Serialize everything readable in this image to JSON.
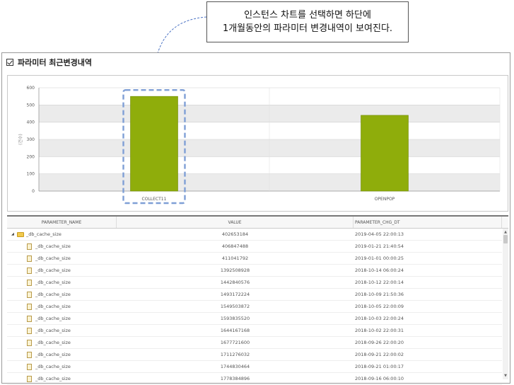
{
  "callout": {
    "line1": "인스턴스 차트를 선택하면 하단에",
    "line2": "1개월동안의 파라미터 변경내역이 보여진다."
  },
  "panel": {
    "title": "파라미터 최근변경내역"
  },
  "colors": {
    "bar": "#8fad0b",
    "highlight_dash": "#7f9fd6",
    "arrow": "#4a72c4"
  },
  "chart_data": {
    "type": "bar",
    "categories": [
      "COLLECT11",
      "OPENPOP"
    ],
    "values": [
      550,
      440
    ],
    "ylabel": "(건수)",
    "ylim": [
      0,
      600
    ],
    "yticks": [
      0,
      100,
      200,
      300,
      400,
      500,
      600
    ],
    "grid": true,
    "highlighted_category": "COLLECT11"
  },
  "grid": {
    "columns": [
      "PARAMETER_NAME",
      "VALUE",
      "PARAMETER_CHG_DT"
    ],
    "rows": [
      {
        "name": "_db_cache_size",
        "value": "402653184",
        "dt": "2019-04-05 22:00:13",
        "parent": true
      },
      {
        "name": "_db_cache_size",
        "value": "406847488",
        "dt": "2019-01-21 21:40:54"
      },
      {
        "name": "_db_cache_size",
        "value": "411041792",
        "dt": "2019-01-01 00:00:25"
      },
      {
        "name": "_db_cache_size",
        "value": "1392508928",
        "dt": "2018-10-14 06:00:24"
      },
      {
        "name": "_db_cache_size",
        "value": "1442840576",
        "dt": "2018-10-12 22:00:14"
      },
      {
        "name": "_db_cache_size",
        "value": "1493172224",
        "dt": "2018-10-09 21:50:36"
      },
      {
        "name": "_db_cache_size",
        "value": "1549503872",
        "dt": "2018-10-05 22:00:09"
      },
      {
        "name": "_db_cache_size",
        "value": "1593835520",
        "dt": "2018-10-03 22:00:24"
      },
      {
        "name": "_db_cache_size",
        "value": "1644167168",
        "dt": "2018-10-02 22:00:31"
      },
      {
        "name": "_db_cache_size",
        "value": "1677721600",
        "dt": "2018-09-26 22:00:20"
      },
      {
        "name": "_db_cache_size",
        "value": "1711276032",
        "dt": "2018-09-21 22:00:02"
      },
      {
        "name": "_db_cache_size",
        "value": "1744830464",
        "dt": "2018-09-21 01:00:17"
      },
      {
        "name": "_db_cache_size",
        "value": "1778384896",
        "dt": "2018-09-16 06:00:10"
      }
    ]
  }
}
